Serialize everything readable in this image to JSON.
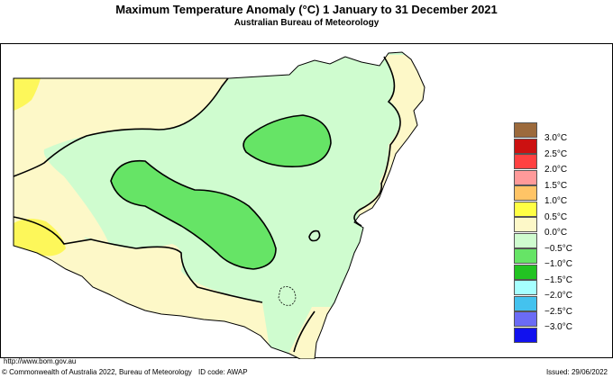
{
  "header": {
    "title": "Maximum Temperature Anomaly (°C)  1 January to 31 December 2021",
    "subtitle": "Australian Bureau of Meteorology"
  },
  "map": {
    "region": "New South Wales",
    "fill_colors": {
      "pos_0_0_to_0_5": "#fdf8c8",
      "pos_0_5_to_1_0": "#fdf75a",
      "neg_0_0_to_0_5": "#cffccf",
      "neg_0_5_to_1_0": "#66e466"
    }
  },
  "legend": {
    "items": [
      {
        "label": "3.0°C",
        "color": "#9c6a3c"
      },
      {
        "label": "2.5°C",
        "color": "#cc1111"
      },
      {
        "label": "2.0°C",
        "color": "#ff4141"
      },
      {
        "label": "1.5°C",
        "color": "#ff9a9a"
      },
      {
        "label": "1.0°C",
        "color": "#ffc466"
      },
      {
        "label": "0.5°C",
        "color": "#ffff44"
      },
      {
        "label": "0.0°C",
        "color": "#fdf8c8"
      },
      {
        "label": "−0.5°C",
        "color": "#cffccf"
      },
      {
        "label": "−1.0°C",
        "color": "#66e466"
      },
      {
        "label": "−1.5°C",
        "color": "#22c322"
      },
      {
        "label": "−2.0°C",
        "color": "#a6ffff"
      },
      {
        "label": "−2.5°C",
        "color": "#44c2ee"
      },
      {
        "label": "−3.0°C",
        "color": "#6b6bf5"
      },
      {
        "label": "",
        "color": "#1111ee"
      }
    ]
  },
  "footer": {
    "url": "http://www.bom.gov.au",
    "copyright": "© Commonwealth of Australia 2022, Bureau of Meteorology",
    "id_code": "ID code: AWAP",
    "issued": "Issued: 29/06/2022"
  }
}
